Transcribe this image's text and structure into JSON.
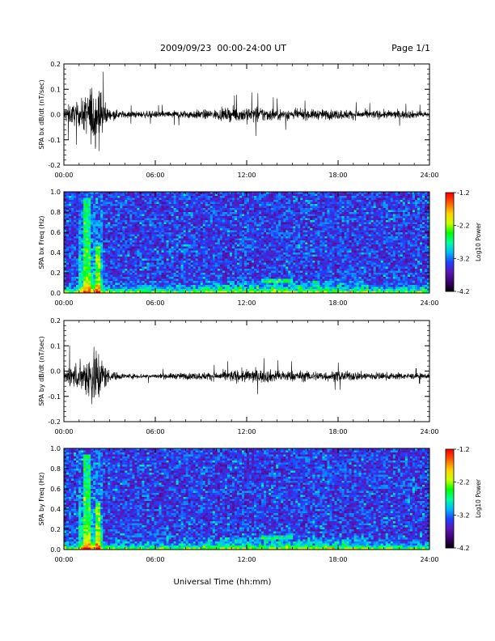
{
  "header": {
    "title": "2009/09/23  00:00-24:00 UT",
    "page": "Page 1/1"
  },
  "colorbar": {
    "label": "Log10 Power",
    "ticks": [
      "-1.2",
      "-2.2",
      "-3.2",
      "-4.2"
    ]
  },
  "colors": {
    "trace": "#000000",
    "spectrogram_background": "#0b0418",
    "colormap": [
      "#000000",
      "#3a006a",
      "#5a16b4",
      "#2040ff",
      "#00b8ff",
      "#00ffa0",
      "#00ff00",
      "#d0ff00",
      "#ffd000",
      "#ff6000",
      "#ff0000"
    ]
  },
  "chart_data": [
    {
      "type": "line",
      "panel": "bx-waveform",
      "ylabel": "SPA bx dB/dt (nT/sec)",
      "xlim": [
        0,
        24
      ],
      "ylim": [
        -0.2,
        0.2
      ],
      "xticks": [
        "00:00",
        "06:00",
        "12:00",
        "18:00",
        "24:00"
      ],
      "yticks": [
        "0.2",
        "0.1",
        "0.0",
        "-0.1",
        "-0.2"
      ],
      "series": [
        {
          "baseline": 0.0,
          "envelope": {
            "x": [
              0,
              1,
              1.5,
              1.9,
              2.3,
              2.6,
              3,
              4,
              6,
              8,
              10,
              11,
              12,
              13,
              14,
              16,
              18,
              20,
              22,
              24
            ],
            "amplitude": [
              0.05,
              0.07,
              0.12,
              0.2,
              0.18,
              0.09,
              0.03,
              0.02,
              0.02,
              0.025,
              0.03,
              0.04,
              0.05,
              0.045,
              0.035,
              0.03,
              0.03,
              0.025,
              0.025,
              0.02
            ]
          }
        }
      ]
    },
    {
      "type": "heatmap",
      "panel": "bx-spectrogram",
      "ylabel": "SPA bx Freq (Hz)",
      "xlim": [
        0,
        24
      ],
      "ylim": [
        0,
        1
      ],
      "zlim": [
        -4.2,
        -1.2
      ],
      "xticks": [
        "00:00",
        "06:00",
        "12:00",
        "18:00",
        "24:00"
      ],
      "yticks": [
        "1.0",
        "0.8",
        "0.6",
        "0.4",
        "0.2",
        "0.0"
      ]
    },
    {
      "type": "line",
      "panel": "by-waveform",
      "ylabel": "SPA by dB/dt (nT/sec)",
      "xlim": [
        0,
        24
      ],
      "ylim": [
        -0.2,
        0.2
      ],
      "xticks": [
        "00:00",
        "06:00",
        "12:00",
        "18:00",
        "24:00"
      ],
      "yticks": [
        "0.2",
        "0.1",
        "0.0",
        "-0.1",
        "-0.2"
      ],
      "series": [
        {
          "baseline": -0.02,
          "envelope": {
            "x": [
              0,
              1,
              1.5,
              2,
              2.3,
              2.6,
              3,
              4,
              6,
              8,
              10,
              11,
              12,
              13,
              14,
              16,
              18,
              20,
              22,
              24
            ],
            "amplitude": [
              0.06,
              0.08,
              0.12,
              0.2,
              0.16,
              0.09,
              0.03,
              0.015,
              0.015,
              0.02,
              0.025,
              0.035,
              0.04,
              0.04,
              0.035,
              0.03,
              0.03,
              0.025,
              0.02,
              0.015
            ]
          }
        }
      ]
    },
    {
      "type": "heatmap",
      "panel": "by-spectrogram",
      "ylabel": "SPA by Freq (Hz)",
      "xlim": [
        0,
        24
      ],
      "ylim": [
        0,
        1
      ],
      "zlim": [
        -4.2,
        -1.2
      ],
      "xticks": [
        "00:00",
        "06:00",
        "12:00",
        "18:00",
        "24:00"
      ],
      "yticks": [
        "1.0",
        "0.8",
        "0.6",
        "0.4",
        "0.2",
        "0.0"
      ]
    }
  ],
  "xlabel": "Universal Time (hh:mm)"
}
